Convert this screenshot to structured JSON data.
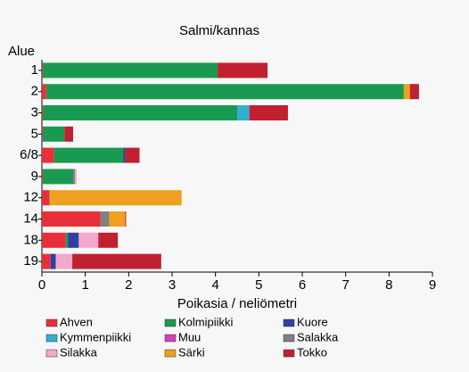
{
  "chart_data": {
    "type": "bar",
    "orientation": "horizontal",
    "stacked": true,
    "title": "Salmi/kannas",
    "y_label": "Alue",
    "x_label": "Poikasia / neliömetri",
    "categories": [
      "1",
      "2",
      "3",
      "5",
      "6/8",
      "9",
      "12",
      "14",
      "18",
      "19"
    ],
    "xlim": [
      0,
      9
    ],
    "xticks": [
      0,
      1,
      2,
      3,
      4,
      5,
      6,
      7,
      8,
      9
    ],
    "series": [
      {
        "name": "Ahven",
        "color": "#e8303a",
        "values": [
          0.02,
          0.1,
          0.02,
          0.02,
          0.28,
          0.02,
          0.18,
          1.35,
          0.55,
          0.2
        ]
      },
      {
        "name": "Kolmipiikki",
        "color": "#1a9a50",
        "values": [
          4.03,
          8.24,
          4.48,
          0.5,
          1.6,
          0.7,
          0,
          0,
          0.05,
          0
        ]
      },
      {
        "name": "Kuore",
        "color": "#3040a0",
        "values": [
          0,
          0,
          0,
          0,
          0.04,
          0,
          0,
          0,
          0.25,
          0.12
        ]
      },
      {
        "name": "Kymmenpiikki",
        "color": "#30b0d0",
        "values": [
          0,
          0,
          0.28,
          0,
          0,
          0,
          0,
          0,
          0,
          0
        ]
      },
      {
        "name": "Muu",
        "color": "#d040c0",
        "values": [
          0,
          0,
          0,
          0,
          0,
          0,
          0,
          0,
          0,
          0
        ]
      },
      {
        "name": "Salakka",
        "color": "#808080",
        "values": [
          0,
          0,
          0,
          0,
          0,
          0.04,
          0,
          0.2,
          0,
          0
        ]
      },
      {
        "name": "Silakka",
        "color": "#f4a8cc",
        "values": [
          0,
          0,
          0,
          0,
          0,
          0.04,
          0,
          0,
          0.45,
          0.38
        ]
      },
      {
        "name": "Särki",
        "color": "#f0a020",
        "values": [
          0,
          0.14,
          0,
          0,
          0,
          0,
          3.04,
          0.37,
          0,
          0
        ]
      },
      {
        "name": "Tokko",
        "color": "#c02030",
        "values": [
          1.15,
          0.21,
          0.89,
          0.2,
          0.33,
          0,
          0,
          0.02,
          0.45,
          2.05
        ]
      }
    ]
  }
}
